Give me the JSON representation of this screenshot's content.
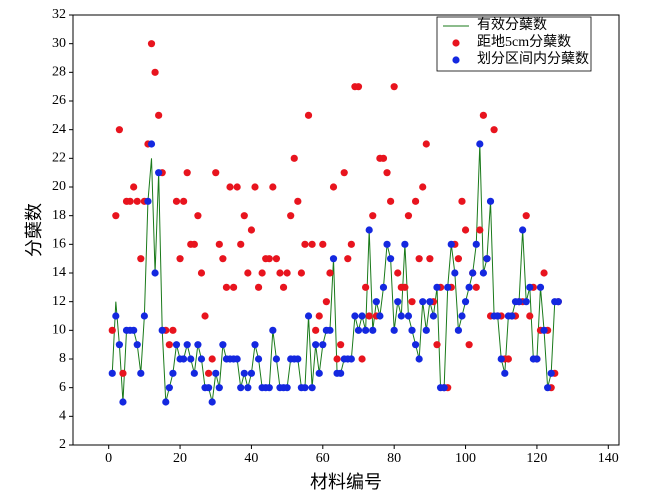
{
  "chart_data": {
    "type": "line",
    "xlabel": "材料编号",
    "ylabel": "分蘖数",
    "xlim": [
      -10,
      143
    ],
    "ylim": [
      2,
      32
    ],
    "xticks": [
      0,
      20,
      40,
      60,
      80,
      100,
      120,
      140
    ],
    "yticks": [
      2,
      4,
      6,
      8,
      10,
      12,
      14,
      16,
      18,
      20,
      22,
      24,
      26,
      28,
      30,
      32
    ],
    "legend": "upper right",
    "x": [
      1,
      2,
      3,
      4,
      5,
      6,
      7,
      8,
      9,
      10,
      11,
      12,
      13,
      14,
      15,
      16,
      17,
      18,
      19,
      20,
      21,
      22,
      23,
      24,
      25,
      26,
      27,
      28,
      29,
      30,
      31,
      32,
      33,
      34,
      35,
      36,
      37,
      38,
      39,
      40,
      41,
      42,
      43,
      44,
      45,
      46,
      47,
      48,
      49,
      50,
      51,
      52,
      53,
      54,
      55,
      56,
      57,
      58,
      59,
      60,
      61,
      62,
      63,
      64,
      65,
      66,
      67,
      68,
      69,
      70,
      71,
      72,
      73,
      74,
      75,
      76,
      77,
      78,
      79,
      80,
      81,
      82,
      83,
      84,
      85,
      86,
      87,
      88,
      89,
      90,
      91,
      92,
      93,
      94,
      95,
      96,
      97,
      98,
      99,
      100,
      101,
      102,
      103,
      104,
      105,
      106,
      107,
      108,
      109,
      110,
      111,
      112,
      113,
      114,
      115,
      116,
      117,
      118,
      119,
      120,
      121,
      122,
      123,
      124,
      125,
      126
    ],
    "series": [
      {
        "name": "有效分蘖数",
        "kind": "line",
        "color": "#1a7a1a",
        "values": [
          7,
          12,
          9,
          5,
          10,
          10,
          10,
          9,
          7,
          11,
          19,
          22,
          14,
          21,
          10,
          5,
          6,
          7,
          9,
          8,
          8,
          9,
          8,
          7,
          9,
          8,
          6,
          6,
          5,
          7,
          6,
          9,
          8,
          8,
          8,
          8,
          6,
          7,
          6,
          7,
          9,
          8,
          6,
          6,
          6,
          10,
          8,
          6,
          6,
          6,
          8,
          8,
          8,
          6,
          6,
          11,
          6,
          9,
          7,
          9,
          10,
          10,
          15,
          7,
          7,
          8,
          8,
          8,
          11,
          10,
          11,
          10,
          17,
          10,
          12,
          11,
          13,
          16,
          15,
          10,
          12,
          11,
          16,
          11,
          10,
          9,
          8,
          12,
          10,
          12,
          11,
          13,
          6,
          6,
          13,
          16,
          14,
          10,
          11,
          12,
          13,
          14,
          16,
          23,
          14,
          15,
          19,
          11,
          11,
          8,
          7,
          11,
          11,
          12,
          12,
          17,
          12,
          13,
          8,
          8,
          13,
          10,
          6,
          7,
          12,
          12
        ]
      },
      {
        "name": "距地5cm分蘖数",
        "kind": "scatter",
        "color": "#e8141e",
        "values": [
          10,
          18,
          24,
          7,
          19,
          19,
          20,
          19,
          15,
          19,
          23,
          30,
          28,
          25,
          21,
          10,
          9,
          10,
          19,
          15,
          19,
          21,
          16,
          16,
          18,
          14,
          11,
          7,
          8,
          21,
          16,
          15,
          13,
          20,
          13,
          20,
          16,
          18,
          14,
          17,
          20,
          13,
          14,
          15,
          15,
          20,
          15,
          14,
          13,
          14,
          18,
          22,
          19,
          14,
          16,
          25,
          16,
          10,
          11,
          16,
          12,
          14,
          20,
          8,
          9,
          21,
          15,
          16,
          27,
          27,
          8,
          13,
          11,
          18,
          11,
          22,
          22,
          21,
          19,
          27,
          14,
          13,
          13,
          18,
          12,
          19,
          15,
          20,
          23,
          15,
          12,
          9,
          13,
          6,
          6,
          13,
          16,
          15,
          19,
          17,
          9,
          14,
          13,
          17,
          25,
          15,
          11,
          24,
          11,
          11,
          8,
          8,
          11,
          11,
          12,
          12,
          18,
          11,
          13,
          8,
          10,
          14,
          10,
          6,
          7,
          12
        ]
      },
      {
        "name": "划分区间内分蘖数",
        "kind": "scatter",
        "color": "#1428e0",
        "values": [
          7,
          11,
          9,
          5,
          10,
          10,
          10,
          9,
          7,
          11,
          19,
          23,
          14,
          21,
          10,
          5,
          6,
          7,
          9,
          8,
          8,
          9,
          8,
          7,
          9,
          8,
          6,
          6,
          5,
          7,
          6,
          9,
          8,
          8,
          8,
          8,
          6,
          7,
          6,
          7,
          9,
          8,
          6,
          6,
          6,
          10,
          8,
          6,
          6,
          6,
          8,
          8,
          8,
          6,
          6,
          11,
          6,
          9,
          7,
          9,
          10,
          10,
          15,
          7,
          7,
          8,
          8,
          8,
          11,
          10,
          11,
          10,
          17,
          10,
          12,
          11,
          13,
          16,
          15,
          10,
          12,
          11,
          16,
          11,
          10,
          9,
          8,
          12,
          10,
          12,
          11,
          13,
          6,
          6,
          13,
          16,
          14,
          10,
          11,
          12,
          13,
          14,
          16,
          23,
          14,
          15,
          19,
          11,
          11,
          8,
          7,
          11,
          11,
          12,
          12,
          17,
          12,
          13,
          8,
          8,
          13,
          10,
          6,
          7,
          12,
          12
        ]
      }
    ]
  }
}
